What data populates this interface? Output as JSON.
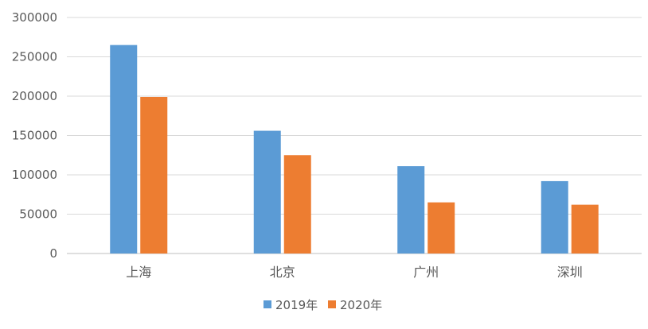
{
  "chart_data": {
    "type": "bar",
    "categories": [
      "上海",
      "北京",
      "广州",
      "深圳"
    ],
    "series": [
      {
        "name": "2019年",
        "color": "#5B9BD5",
        "values": [
          265000,
          156000,
          111000,
          92000
        ]
      },
      {
        "name": "2020年",
        "color": "#ED7D31",
        "values": [
          199000,
          125000,
          65000,
          62000
        ]
      }
    ],
    "y_ticks": [
      "0",
      "50000",
      "100000",
      "150000",
      "200000",
      "250000",
      "300000"
    ],
    "ylim": [
      0,
      300000
    ],
    "grid": true,
    "legend": "bottom-center",
    "title": "",
    "xlabel": "",
    "ylabel": ""
  }
}
